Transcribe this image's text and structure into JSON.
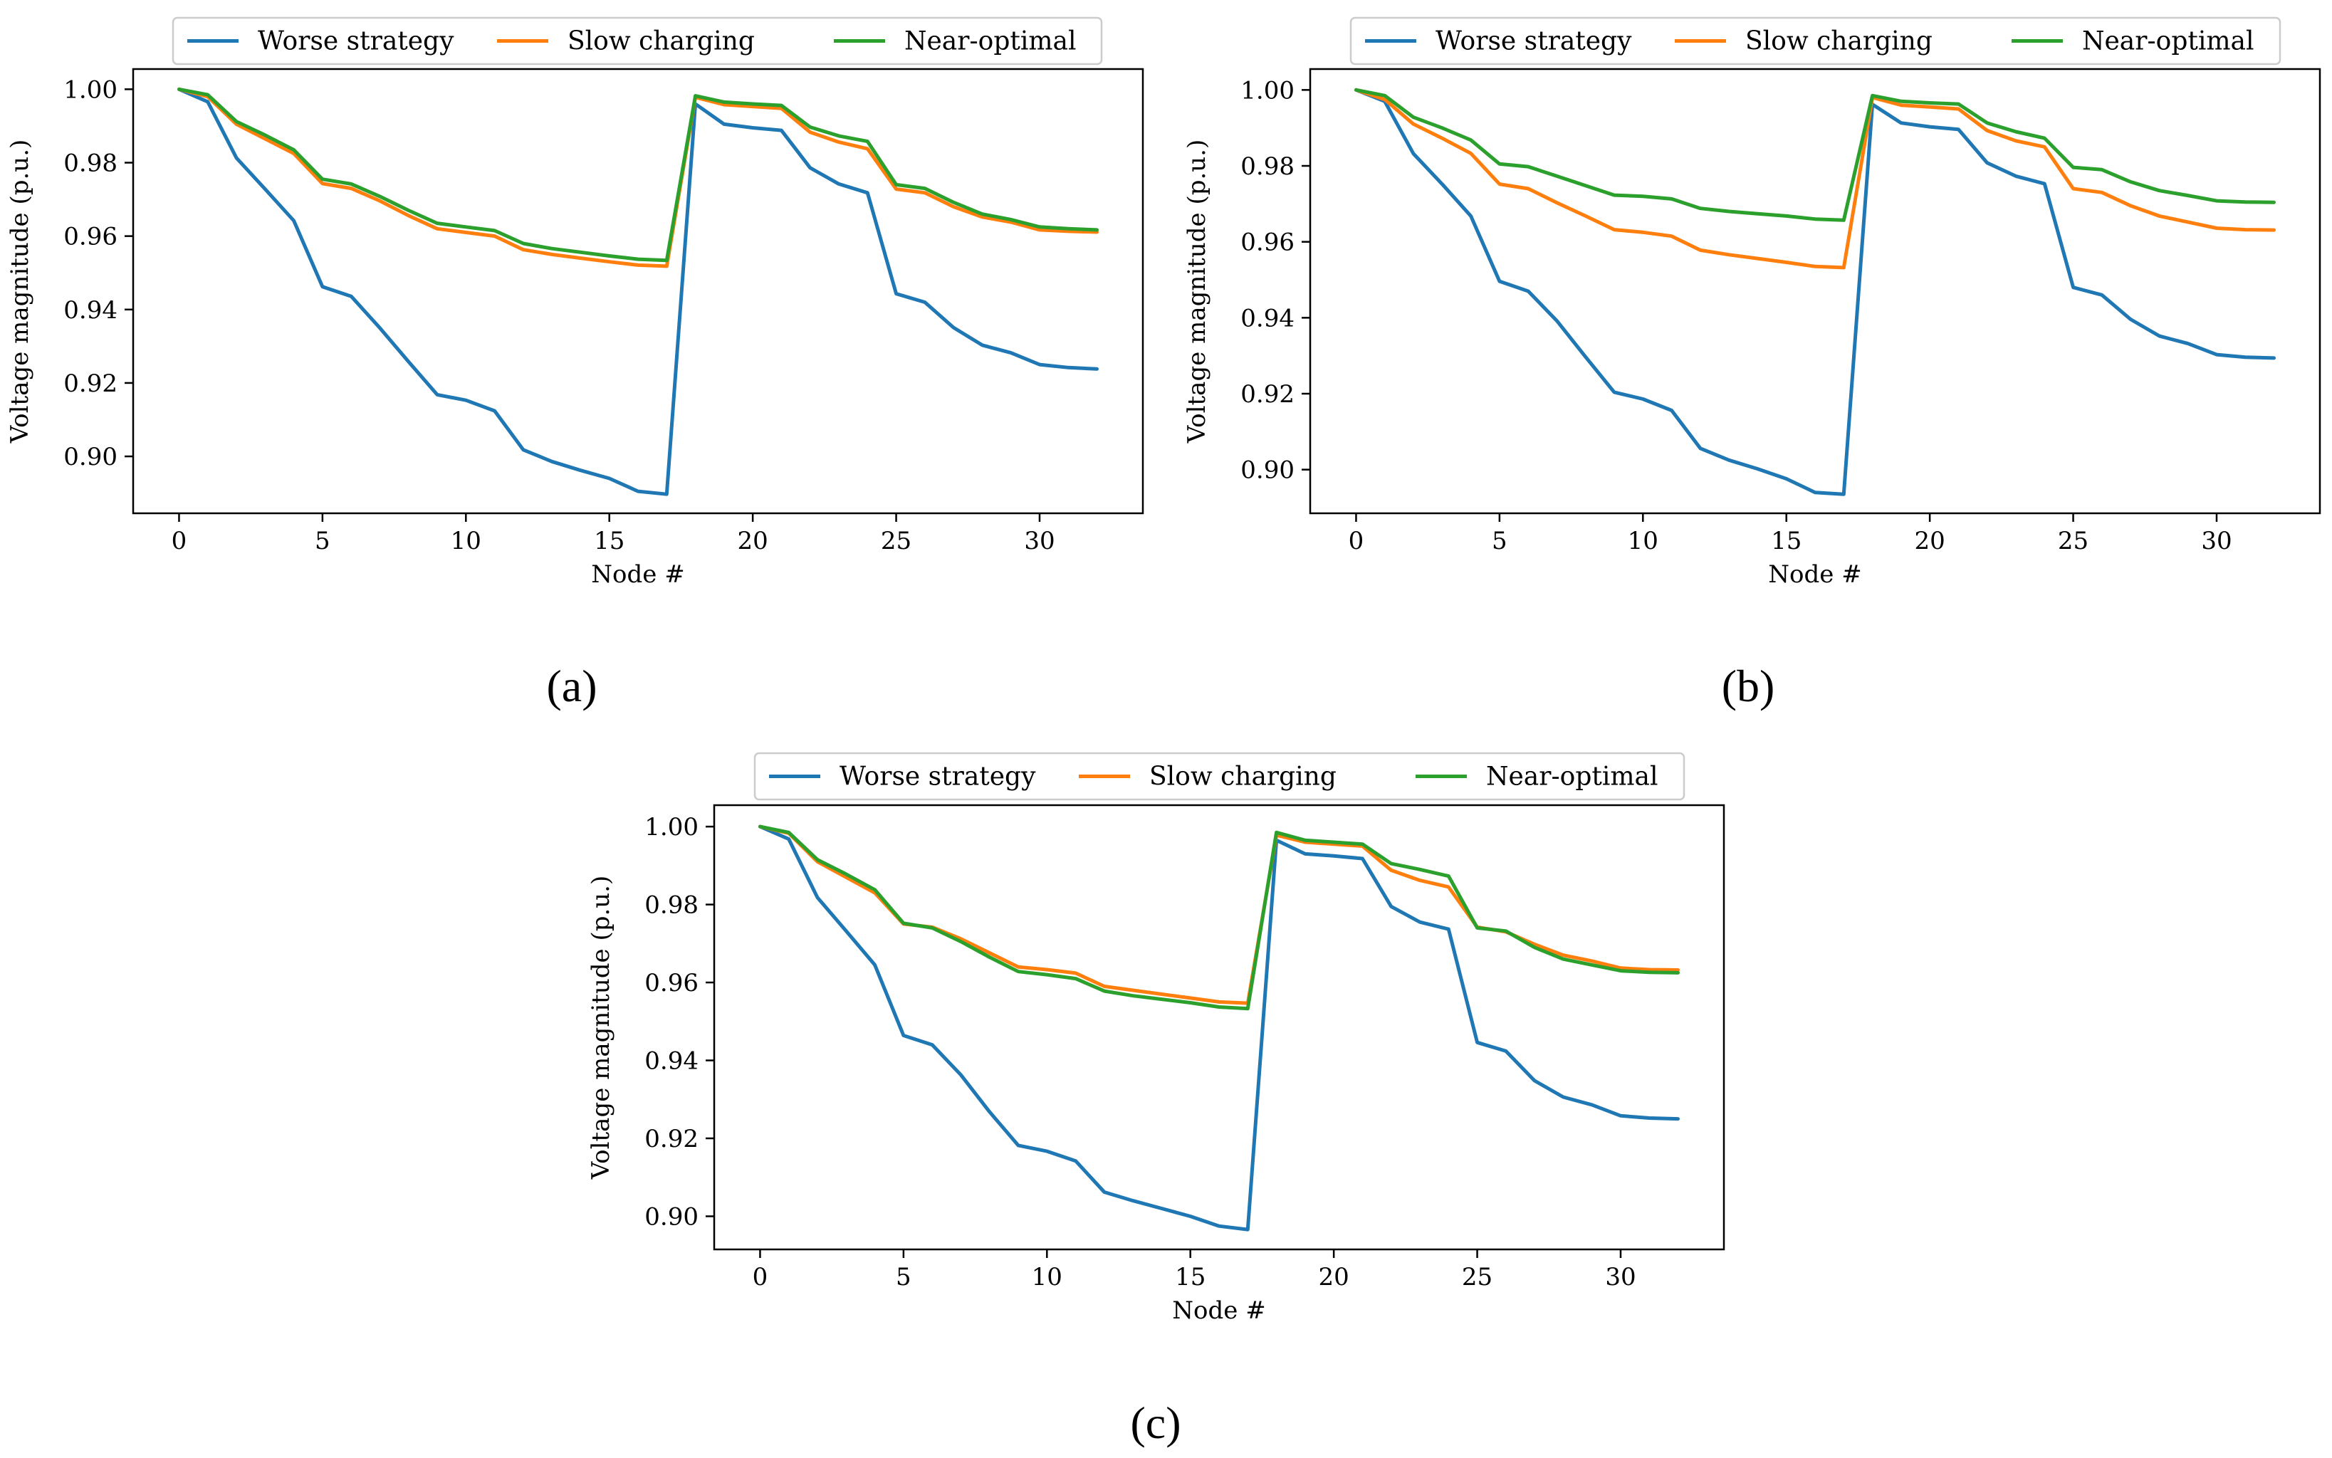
{
  "figure": {
    "captions": [
      "(a)",
      "(b)",
      "(c)"
    ]
  },
  "chart_data": [
    {
      "type": "line",
      "panel": "(a)",
      "title": "",
      "xlabel": "Node #",
      "ylabel": "Voltage magnitude (p.u.)",
      "xlim": [
        -1.6,
        33.6
      ],
      "ylim": [
        0.8845,
        1.0055
      ],
      "xticks": [
        0,
        5,
        10,
        15,
        20,
        25,
        30
      ],
      "yticks": [
        0.9,
        0.92,
        0.94,
        0.96,
        0.98,
        1.0
      ],
      "ytick_labels": [
        "0.90",
        "0.92",
        "0.94",
        "0.96",
        "0.98",
        "1.00"
      ],
      "legend": "top",
      "x": [
        0,
        1,
        2,
        3,
        4,
        5,
        6,
        7,
        8,
        9,
        10,
        11,
        12,
        13,
        14,
        15,
        16,
        17,
        18,
        19,
        20,
        21,
        22,
        23,
        24,
        25,
        26,
        27,
        28,
        29,
        30,
        31,
        32
      ],
      "series": [
        {
          "name": "Worse strategy",
          "color": "#1f77b4",
          "values": [
            1.0,
            0.9966,
            0.9813,
            0.9728,
            0.9642,
            0.9462,
            0.9436,
            0.935,
            0.9258,
            0.9168,
            0.9153,
            0.9124,
            0.9018,
            0.8986,
            0.8962,
            0.894,
            0.8905,
            0.8897,
            0.996,
            0.9905,
            0.9895,
            0.9888,
            0.9786,
            0.9742,
            0.9718,
            0.9443,
            0.942,
            0.9351,
            0.9303,
            0.9282,
            0.925,
            0.9242,
            0.9238
          ]
        },
        {
          "name": "Slow charging",
          "color": "#ff7f0e",
          "values": [
            1.0,
            0.998,
            0.9905,
            0.9865,
            0.9825,
            0.9743,
            0.973,
            0.9696,
            0.9656,
            0.962,
            0.961,
            0.96,
            0.9563,
            0.955,
            0.954,
            0.953,
            0.9521,
            0.9518,
            0.9978,
            0.9958,
            0.9953,
            0.9948,
            0.9883,
            0.9856,
            0.9838,
            0.9728,
            0.9718,
            0.968,
            0.9652,
            0.9638,
            0.9617,
            0.9613,
            0.9611
          ]
        },
        {
          "name": "Near-optimal",
          "color": "#2ca02c",
          "values": [
            1.0,
            0.9985,
            0.9912,
            0.9875,
            0.9835,
            0.9755,
            0.9742,
            0.9708,
            0.967,
            0.9635,
            0.9625,
            0.9615,
            0.958,
            0.9566,
            0.9556,
            0.9546,
            0.9537,
            0.9534,
            0.9982,
            0.9965,
            0.996,
            0.9956,
            0.9897,
            0.9873,
            0.9858,
            0.974,
            0.973,
            0.9692,
            0.966,
            0.9645,
            0.9625,
            0.962,
            0.9617
          ]
        }
      ]
    },
    {
      "type": "line",
      "panel": "(b)",
      "title": "",
      "xlabel": "Node #",
      "ylabel": "Voltage magnitude (p.u.)",
      "xlim": [
        -1.6,
        33.6
      ],
      "ylim": [
        0.8885,
        1.0055
      ],
      "xticks": [
        0,
        5,
        10,
        15,
        20,
        25,
        30
      ],
      "yticks": [
        0.9,
        0.92,
        0.94,
        0.96,
        0.98,
        1.0
      ],
      "ytick_labels": [
        "0.90",
        "0.92",
        "0.94",
        "0.96",
        "0.98",
        "1.00"
      ],
      "legend": "top",
      "x": [
        0,
        1,
        2,
        3,
        4,
        5,
        6,
        7,
        8,
        9,
        10,
        11,
        12,
        13,
        14,
        15,
        16,
        17,
        18,
        19,
        20,
        21,
        22,
        23,
        24,
        25,
        26,
        27,
        28,
        29,
        30,
        31,
        32
      ],
      "series": [
        {
          "name": "Worse strategy",
          "color": "#1f77b4",
          "values": [
            1.0,
            0.997,
            0.9832,
            0.9752,
            0.9668,
            0.9496,
            0.947,
            0.9392,
            0.9297,
            0.9204,
            0.9186,
            0.9156,
            0.9056,
            0.9025,
            0.9002,
            0.8976,
            0.894,
            0.8935,
            0.9962,
            0.9913,
            0.9903,
            0.9896,
            0.9808,
            0.9773,
            0.9753,
            0.948,
            0.946,
            0.9396,
            0.9352,
            0.9332,
            0.9303,
            0.9296,
            0.9294
          ]
        },
        {
          "name": "Slow charging",
          "color": "#ff7f0e",
          "values": [
            1.0,
            0.9975,
            0.991,
            0.9873,
            0.9833,
            0.9752,
            0.974,
            0.9703,
            0.9668,
            0.9632,
            0.9625,
            0.9615,
            0.9578,
            0.9566,
            0.9556,
            0.9546,
            0.9535,
            0.9532,
            0.998,
            0.996,
            0.9955,
            0.995,
            0.9893,
            0.9866,
            0.985,
            0.974,
            0.973,
            0.9695,
            0.9668,
            0.9652,
            0.9636,
            0.9632,
            0.9631
          ]
        },
        {
          "name": "Near-optimal",
          "color": "#2ca02c",
          "values": [
            1.0,
            0.9985,
            0.9928,
            0.99,
            0.9868,
            0.9805,
            0.9798,
            0.9773,
            0.9748,
            0.9723,
            0.972,
            0.9713,
            0.9688,
            0.968,
            0.9674,
            0.9668,
            0.966,
            0.9657,
            0.9985,
            0.997,
            0.9966,
            0.9963,
            0.9913,
            0.989,
            0.9873,
            0.9796,
            0.979,
            0.9758,
            0.9735,
            0.9722,
            0.9708,
            0.9705,
            0.9704
          ]
        }
      ]
    },
    {
      "type": "line",
      "panel": "(c)",
      "title": "",
      "xlabel": "Node #",
      "ylabel": "Voltage magnitude (p.u.)",
      "xlim": [
        -1.6,
        33.6
      ],
      "ylim": [
        0.8915,
        1.0055
      ],
      "xticks": [
        0,
        5,
        10,
        15,
        20,
        25,
        30
      ],
      "yticks": [
        0.9,
        0.92,
        0.94,
        0.96,
        0.98,
        1.0
      ],
      "ytick_labels": [
        "0.90",
        "0.92",
        "0.94",
        "0.96",
        "0.98",
        "1.00"
      ],
      "legend": "top",
      "x": [
        0,
        1,
        2,
        3,
        4,
        5,
        6,
        7,
        8,
        9,
        10,
        11,
        12,
        13,
        14,
        15,
        16,
        17,
        18,
        19,
        20,
        21,
        22,
        23,
        24,
        25,
        26,
        27,
        28,
        29,
        30,
        31,
        32
      ],
      "series": [
        {
          "name": "Worse strategy",
          "color": "#1f77b4",
          "values": [
            1.0,
            0.9968,
            0.9818,
            0.9732,
            0.9645,
            0.9464,
            0.944,
            0.9363,
            0.9268,
            0.9182,
            0.9167,
            0.9142,
            0.9062,
            0.904,
            0.902,
            0.9,
            0.8975,
            0.8966,
            0.9965,
            0.993,
            0.9925,
            0.9918,
            0.9795,
            0.9755,
            0.9737,
            0.9446,
            0.9424,
            0.9348,
            0.9306,
            0.9286,
            0.9258,
            0.9252,
            0.925
          ]
        },
        {
          "name": "Slow charging",
          "color": "#ff7f0e",
          "values": [
            1.0,
            0.9983,
            0.991,
            0.987,
            0.983,
            0.975,
            0.9742,
            0.9712,
            0.9676,
            0.964,
            0.9633,
            0.9624,
            0.959,
            0.958,
            0.957,
            0.956,
            0.955,
            0.9547,
            0.9978,
            0.996,
            0.9955,
            0.995,
            0.9888,
            0.9862,
            0.9845,
            0.9742,
            0.973,
            0.9698,
            0.967,
            0.9655,
            0.9637,
            0.9633,
            0.9632
          ]
        },
        {
          "name": "Near-optimal",
          "color": "#2ca02c",
          "values": [
            1.0,
            0.9985,
            0.9915,
            0.9878,
            0.9838,
            0.9752,
            0.974,
            0.9705,
            0.9665,
            0.9628,
            0.962,
            0.961,
            0.9578,
            0.9566,
            0.9557,
            0.9548,
            0.9537,
            0.9533,
            0.9985,
            0.9965,
            0.996,
            0.9955,
            0.9905,
            0.989,
            0.9873,
            0.974,
            0.9732,
            0.969,
            0.966,
            0.9645,
            0.963,
            0.9626,
            0.9625
          ]
        }
      ]
    }
  ]
}
